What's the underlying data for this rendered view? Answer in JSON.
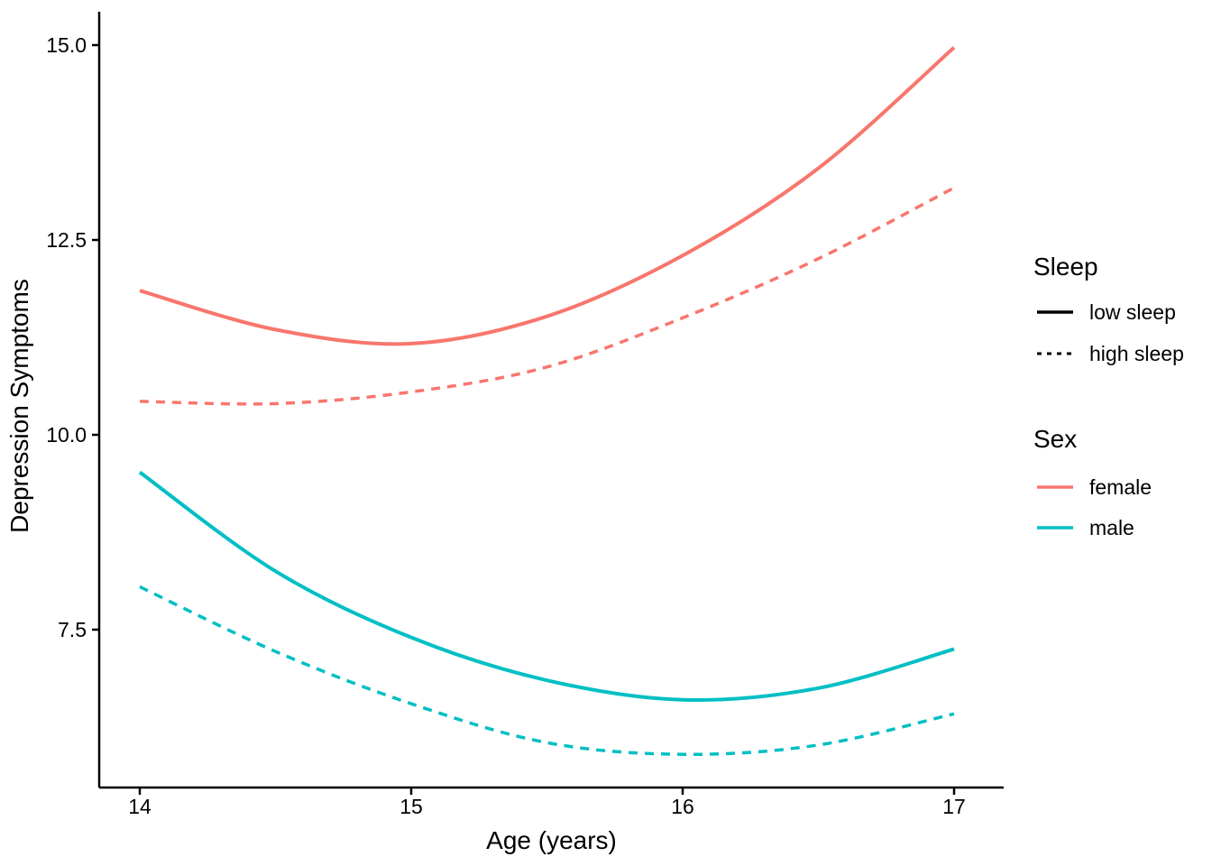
{
  "chart_data": {
    "type": "line",
    "title": "",
    "xlabel": "Age (years)",
    "ylabel": "Depression Symptoms",
    "x_tick_labels": [
      "14",
      "15",
      "16",
      "17"
    ],
    "x_tick_values": [
      14,
      15,
      16,
      17
    ],
    "y_tick_labels": [
      "15.0",
      "12.5",
      "10.0",
      "7.5"
    ],
    "y_tick_values": [
      15.0,
      12.5,
      10.0,
      7.5
    ],
    "xlim": [
      13.85,
      17.18
    ],
    "ylim": [
      5.47,
      15.43
    ],
    "grid": false,
    "legend_position": "right",
    "x": [
      14,
      14.5,
      15,
      15.5,
      16,
      16.5,
      17
    ],
    "series": [
      {
        "name": "female low sleep",
        "sex": "female",
        "sleep": "low sleep",
        "linetype": "solid",
        "color": "#F8766D",
        "values": [
          11.85,
          11.35,
          11.17,
          11.52,
          12.3,
          13.42,
          14.97
        ]
      },
      {
        "name": "female high sleep",
        "sex": "female",
        "sleep": "high sleep",
        "linetype": "dashed",
        "color": "#F8766D",
        "values": [
          10.43,
          10.4,
          10.55,
          10.87,
          11.5,
          12.26,
          13.17
        ]
      },
      {
        "name": "male low sleep",
        "sex": "male",
        "sleep": "low sleep",
        "linetype": "solid",
        "color": "#00BFC4",
        "values": [
          9.52,
          8.25,
          7.4,
          6.85,
          6.6,
          6.75,
          7.25
        ]
      },
      {
        "name": "male high sleep",
        "sex": "male",
        "sleep": "high sleep",
        "linetype": "dashed",
        "color": "#00BFC4",
        "values": [
          8.05,
          7.22,
          6.55,
          6.05,
          5.9,
          6.02,
          6.42
        ]
      }
    ],
    "colors": {
      "female": "#F8766D",
      "male": "#00BFC4",
      "axis": "#000000"
    },
    "legend": {
      "sleep_title": "Sleep",
      "sleep_items": [
        {
          "label": "low sleep",
          "pattern": "solid"
        },
        {
          "label": "high sleep",
          "pattern": "dashed"
        }
      ],
      "sex_title": "Sex",
      "sex_items": [
        {
          "label": "female",
          "color": "#F8766D"
        },
        {
          "label": "male",
          "color": "#00BFC4"
        }
      ]
    }
  }
}
